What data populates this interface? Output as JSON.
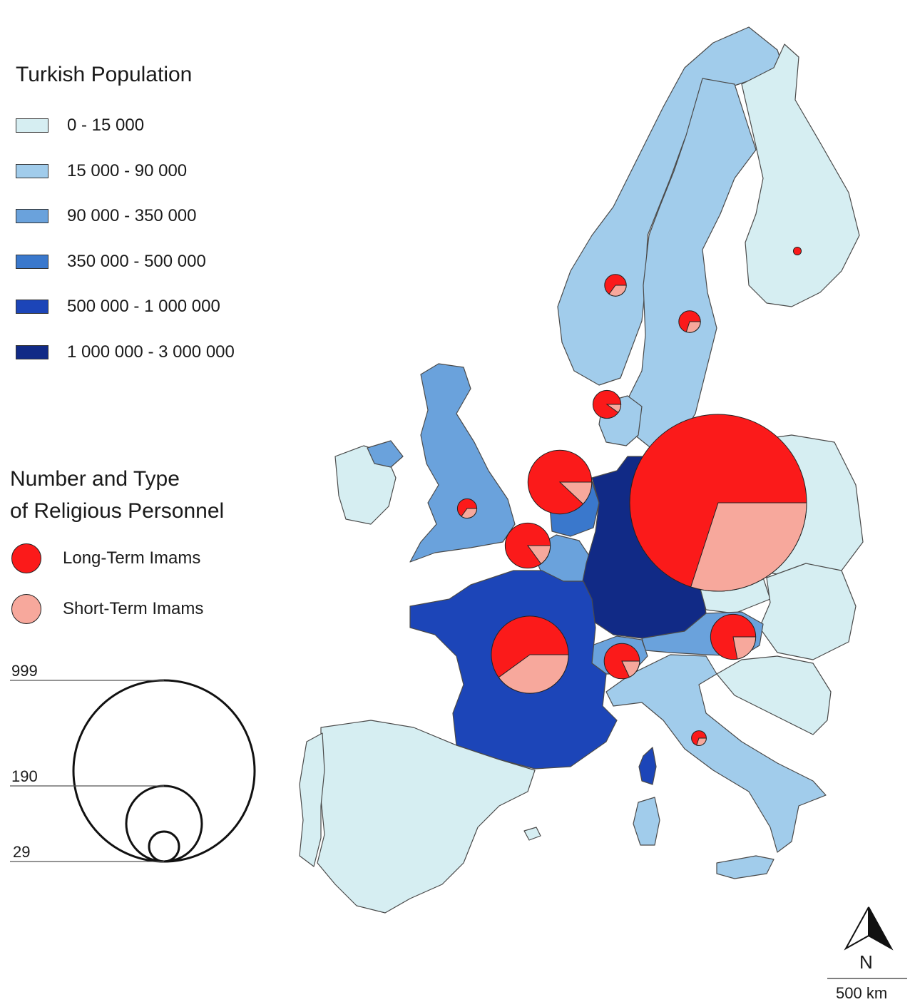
{
  "legend": {
    "population_title": "Turkish Population",
    "population_classes": [
      {
        "label": "0 - 15 000",
        "color": "#d6eef2"
      },
      {
        "label": "15 000 - 90 000",
        "color": "#a1cceb"
      },
      {
        "label": "90 000 - 350 000",
        "color": "#6aa2dc"
      },
      {
        "label": "350 000 - 500 000",
        "color": "#3a78cc"
      },
      {
        "label": "500 000 - 1 000 000",
        "color": "#1c45b8"
      },
      {
        "label": "1 000 000 - 3 000 000",
        "color": "#112a86"
      }
    ],
    "personnel_title_line1": "Number and Type",
    "personnel_title_line2": "of Religious Personnel",
    "long_term_label": "Long-Term Imams",
    "short_term_label": "Short-Term Imams",
    "long_term_color": "#fb1a1a",
    "short_term_color": "#f7a89c",
    "size_reference": [
      "999",
      "190",
      "29"
    ]
  },
  "compass": {
    "north_label": "N",
    "icon": "north-arrow-icon"
  },
  "scale_bar": {
    "label": "500 km"
  },
  "chart_data": {
    "type": "proportional-pie-map",
    "size_reference_values": [
      999,
      190,
      29
    ],
    "pies": [
      {
        "location": "Germany",
        "total": 999,
        "short_fraction": 0.3
      },
      {
        "location": "France",
        "total": 190,
        "short_fraction": 0.4
      },
      {
        "location": "Netherlands",
        "total": 130,
        "short_fraction": 0.12
      },
      {
        "location": "Belgium",
        "total": 65,
        "short_fraction": 0.15
      },
      {
        "location": "Austria",
        "total": 65,
        "short_fraction": 0.22
      },
      {
        "location": "Switzerland",
        "total": 40,
        "short_fraction": 0.18
      },
      {
        "location": "Denmark",
        "total": 25,
        "short_fraction": 0.1
      },
      {
        "location": "Norway",
        "total": 15,
        "short_fraction": 0.35
      },
      {
        "location": "Sweden",
        "total": 15,
        "short_fraction": 0.3
      },
      {
        "location": "United Kingdom",
        "total": 12,
        "short_fraction": 0.35
      },
      {
        "location": "Italy",
        "total": 7,
        "short_fraction": 0.3
      },
      {
        "location": "Finland",
        "total": 2,
        "short_fraction": 0.0
      }
    ]
  }
}
